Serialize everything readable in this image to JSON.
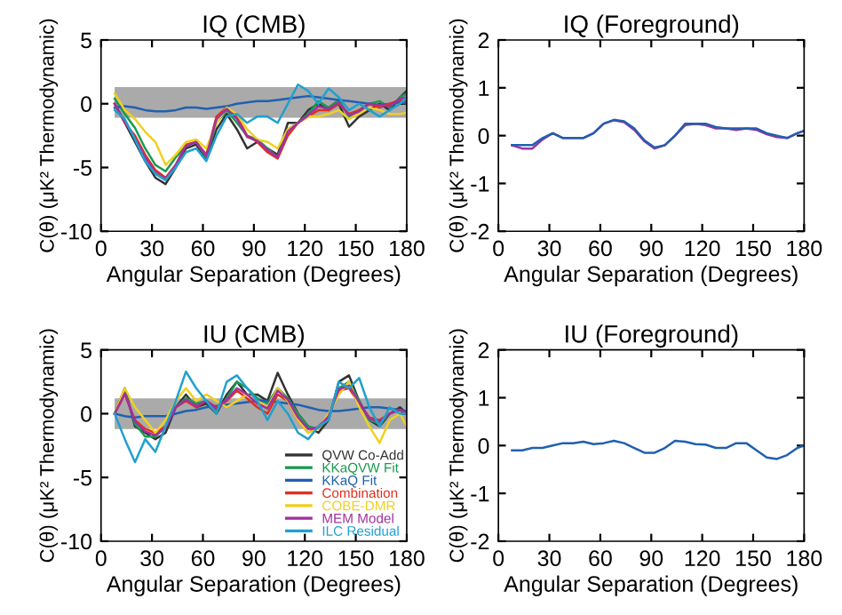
{
  "chart_data": [
    {
      "type": "line",
      "title": "IQ (CMB)",
      "xlabel": "Angular Separation (Degrees)",
      "ylabel": "C(θ) (μK² Thermodynamic)",
      "x": [
        8,
        14,
        20,
        26,
        32,
        38,
        44,
        50,
        56,
        62,
        68,
        74,
        80,
        86,
        92,
        98,
        104,
        110,
        116,
        122,
        128,
        134,
        140,
        146,
        152,
        158,
        164,
        170,
        176,
        180
      ],
      "xlim": [
        0,
        180
      ],
      "xticks": [
        0,
        30,
        60,
        90,
        120,
        150,
        180
      ],
      "ylim": [
        -10,
        5
      ],
      "yticks": [
        -10,
        -5,
        0,
        5
      ],
      "grid": false,
      "legend": false,
      "bands": [
        {
          "axis": "y",
          "from": -1.1,
          "to": 1.3,
          "color": "#aaaaaa"
        }
      ],
      "series": [
        {
          "color": "#333333",
          "values": [
            0,
            -1.5,
            -3,
            -4.5,
            -5.8,
            -6.3,
            -5,
            -3.5,
            -3.2,
            -4.3,
            -2,
            -0.8,
            -2,
            -3.5,
            -3,
            -3.5,
            -4,
            -1.5,
            -1.5,
            -0.5,
            0,
            -0.5,
            0,
            -1.8,
            -1,
            -0.5,
            0,
            -0.5,
            0.5,
            1
          ]
        },
        {
          "color": "#1a9a50",
          "values": [
            0.4,
            -0.8,
            -1.9,
            -3.5,
            -4.8,
            -5.3,
            -4.2,
            -3.3,
            -3,
            -4.2,
            -1.5,
            -0.5,
            -1.5,
            -2.5,
            -2.8,
            -3.5,
            -4.2,
            -2,
            -1.5,
            -0.8,
            0.2,
            -0.3,
            0.3,
            -1,
            -0.5,
            0,
            0.2,
            -0.3,
            0.5,
            0.8
          ]
        },
        {
          "color": "#2060b0",
          "values": [
            -0.3,
            -0.2,
            -0.3,
            -0.5,
            -0.6,
            -0.6,
            -0.5,
            -0.3,
            -0.3,
            -0.4,
            -0.3,
            -0.2,
            0,
            0.1,
            0.2,
            0.2,
            0.3,
            0.4,
            0.5,
            0.6,
            0.5,
            0.4,
            0.3,
            0.2,
            0.1,
            0,
            -0.1,
            0,
            0.1,
            0
          ]
        },
        {
          "color": "#e03020",
          "values": [
            0,
            -1.5,
            -2.5,
            -4,
            -5.2,
            -5.8,
            -4.8,
            -3.2,
            -3,
            -4,
            -1,
            -0.3,
            -1,
            -2.5,
            -3,
            -3.8,
            -4.3,
            -2.5,
            -1.5,
            -1,
            -0.5,
            -0.5,
            0,
            -0.8,
            -0.5,
            0,
            -0.3,
            0,
            0.3,
            0.2
          ]
        },
        {
          "color": "#f0d020",
          "values": [
            0.8,
            -0.5,
            -1.2,
            -2.2,
            -3,
            -4.8,
            -4,
            -3,
            -2.8,
            -3.5,
            -1.5,
            -0.3,
            -0.8,
            -2,
            -2.8,
            -3,
            -3.5,
            -2,
            -1.5,
            -1,
            -1,
            -0.8,
            -0.5,
            -1.2,
            -0.8,
            -0.3,
            -0.5,
            -0.8,
            -0.8,
            -0.7
          ]
        },
        {
          "color": "#a030a0",
          "values": [
            0,
            -1.4,
            -2.7,
            -4.2,
            -5.4,
            -5.9,
            -4.8,
            -3.3,
            -3,
            -4.1,
            -1.2,
            -0.4,
            -1.2,
            -2.6,
            -2.9,
            -3.6,
            -4.2,
            -2.2,
            -1.5,
            -0.9,
            -0.2,
            -0.4,
            0.1,
            -0.9,
            -0.6,
            0,
            -0.1,
            -0.2,
            0.4,
            0.5
          ]
        },
        {
          "color": "#20a0d0",
          "values": [
            -0.5,
            -1.2,
            -2.8,
            -4.5,
            -5.5,
            -6,
            -5,
            -3.8,
            -3.5,
            -4.5,
            -2.5,
            -1,
            -0.8,
            -1.5,
            -1,
            -1,
            -1.5,
            0,
            1.5,
            1,
            0,
            1.2,
            0.5,
            -0.5,
            0,
            -0.5,
            -1,
            -0.5,
            0,
            0.5
          ]
        }
      ]
    },
    {
      "type": "line",
      "title": "IQ (Foreground)",
      "xlabel": "Angular Separation (Degrees)",
      "ylabel": "C(θ) (μK² Thermodynamic)",
      "x": [
        8,
        14,
        20,
        26,
        32,
        38,
        44,
        50,
        56,
        62,
        68,
        74,
        80,
        86,
        92,
        98,
        104,
        110,
        116,
        122,
        128,
        134,
        140,
        146,
        152,
        158,
        164,
        170,
        176,
        180
      ],
      "xlim": [
        0,
        180
      ],
      "xticks": [
        0,
        30,
        60,
        90,
        120,
        150,
        180
      ],
      "ylim": [
        -2,
        2
      ],
      "yticks": [
        -2,
        -1,
        0,
        1,
        2
      ],
      "grid": false,
      "legend": false,
      "series": [
        {
          "color": "#a030a0",
          "values": [
            -0.2,
            -0.27,
            -0.27,
            -0.08,
            0.05,
            -0.05,
            -0.05,
            -0.05,
            0.05,
            0.25,
            0.32,
            0.28,
            0.12,
            -0.12,
            -0.27,
            -0.2,
            0,
            0.22,
            0.25,
            0.22,
            0.15,
            0.15,
            0.12,
            0.15,
            0.12,
            0.03,
            -0.03,
            -0.05,
            0.05,
            0.1
          ]
        },
        {
          "color": "#2060b0",
          "values": [
            -0.2,
            -0.2,
            -0.2,
            -0.05,
            0.05,
            -0.05,
            -0.05,
            -0.05,
            0.05,
            0.25,
            0.33,
            0.3,
            0.15,
            -0.1,
            -0.25,
            -0.2,
            0,
            0.25,
            0.25,
            0.25,
            0.18,
            0.15,
            0.15,
            0.15,
            0.15,
            0.05,
            0,
            -0.05,
            0.05,
            0.1
          ]
        }
      ]
    },
    {
      "type": "line",
      "title": "IU (CMB)",
      "xlabel": "Angular Separation (Degrees)",
      "ylabel": "C(θ) (μK² Thermodynamic)",
      "x": [
        8,
        14,
        20,
        26,
        32,
        38,
        44,
        50,
        56,
        62,
        68,
        74,
        80,
        86,
        92,
        98,
        104,
        110,
        116,
        122,
        128,
        134,
        140,
        146,
        152,
        158,
        164,
        170,
        176,
        180
      ],
      "xlim": [
        0,
        180
      ],
      "xticks": [
        0,
        30,
        60,
        90,
        120,
        150,
        180
      ],
      "ylim": [
        -10,
        5
      ],
      "yticks": [
        -10,
        -5,
        0,
        5
      ],
      "grid": false,
      "legend": "bottom right",
      "bands": [
        {
          "axis": "y",
          "from": -1.2,
          "to": 1.2,
          "color": "#aaaaaa"
        }
      ],
      "series": [
        {
          "name": "QVW Co-Add",
          "color": "#333333",
          "values": [
            0,
            2,
            -1,
            -1.5,
            -2,
            -1.5,
            0.5,
            1.5,
            0.5,
            0.8,
            0,
            1.5,
            2.5,
            1.5,
            1.5,
            1,
            3.2,
            1.5,
            0,
            -1,
            -1.5,
            -0.5,
            2.5,
            3,
            1,
            -0.5,
            -1,
            0,
            0.5,
            0
          ]
        },
        {
          "name": "KKaQVW Fit",
          "color": "#1a9a50",
          "values": [
            0,
            1.8,
            -0.8,
            -1.8,
            -1.8,
            -1,
            0.5,
            1.2,
            0.8,
            1,
            0.2,
            1.2,
            2.5,
            2,
            1.2,
            0.8,
            2,
            1.2,
            0,
            -1,
            -1.2,
            -0.2,
            2,
            2.5,
            1,
            -0.5,
            -0.8,
            0,
            0.3,
            0
          ]
        },
        {
          "name": "KKaQ Fit",
          "color": "#2060b0",
          "values": [
            0,
            -0.2,
            -0.3,
            -0.2,
            -0.2,
            -0.2,
            0,
            0.2,
            0.3,
            0.5,
            0.6,
            0.7,
            0.8,
            0.9,
            1,
            1,
            0.9,
            0.8,
            0.7,
            0.5,
            0.3,
            0.2,
            0.2,
            0.3,
            0.4,
            0.5,
            0.5,
            0.4,
            0.3,
            0.2
          ]
        },
        {
          "name": "Combination",
          "color": "#e03020",
          "values": [
            0,
            1.5,
            -0.5,
            -1.2,
            -1.5,
            -1,
            0.5,
            1,
            0.5,
            1,
            0.5,
            1,
            1.8,
            1.2,
            0.5,
            0,
            1.5,
            1,
            -0.5,
            -1.5,
            -1,
            -0.2,
            1.8,
            2,
            0.8,
            -0.3,
            -0.5,
            0,
            0.3,
            0
          ]
        },
        {
          "name": "COBE-DMR",
          "color": "#f0d020",
          "values": [
            0,
            2,
            0.5,
            -0.5,
            -1.5,
            -0.5,
            1,
            2,
            1,
            1.5,
            1,
            0.5,
            1,
            1.5,
            1,
            0.5,
            2,
            1,
            -0.5,
            -1.5,
            -1.2,
            0,
            1.5,
            2.5,
            0.5,
            -1,
            -2.3,
            -0.5,
            0,
            -1
          ]
        },
        {
          "name": "MEM Model",
          "color": "#a030a0",
          "values": [
            0,
            1.6,
            -0.6,
            -1.4,
            -1.7,
            -1.1,
            0.5,
            1.1,
            0.6,
            1,
            0.4,
            1.1,
            2,
            1.5,
            0.8,
            0.4,
            1.8,
            1.1,
            -0.3,
            -1.2,
            -1.1,
            -0.2,
            1.9,
            2.2,
            0.9,
            -0.4,
            -0.6,
            0,
            0.3,
            0
          ]
        },
        {
          "name": "ILC Residual",
          "color": "#20a0d0",
          "values": [
            0,
            -2,
            -3.8,
            -2,
            -3,
            -1,
            1,
            3.3,
            2,
            1,
            0,
            2.5,
            3,
            2,
            1,
            -0.5,
            1,
            0,
            -1.5,
            -2,
            -1,
            -0.5,
            2.5,
            2,
            2.8,
            0.5,
            -1,
            0.5,
            0,
            0
          ]
        }
      ]
    },
    {
      "type": "line",
      "title": "IU (Foreground)",
      "xlabel": "Angular Separation (Degrees)",
      "ylabel": "C(θ) (μK² Thermodynamic)",
      "x": [
        8,
        14,
        20,
        26,
        32,
        38,
        44,
        50,
        56,
        62,
        68,
        74,
        80,
        86,
        92,
        98,
        104,
        110,
        116,
        122,
        128,
        134,
        140,
        146,
        152,
        158,
        164,
        170,
        176,
        180
      ],
      "xlim": [
        0,
        180
      ],
      "xticks": [
        0,
        30,
        60,
        90,
        120,
        150,
        180
      ],
      "ylim": [
        -2,
        2
      ],
      "yticks": [
        -2,
        -1,
        0,
        1,
        2
      ],
      "grid": false,
      "legend": false,
      "series": [
        {
          "color": "#2060b0",
          "values": [
            -0.1,
            -0.1,
            -0.05,
            -0.05,
            0,
            0.05,
            0.05,
            0.08,
            0.03,
            0.05,
            0.1,
            0.05,
            -0.05,
            -0.15,
            -0.15,
            -0.05,
            0.1,
            0.08,
            0.03,
            0.02,
            -0.05,
            -0.05,
            0.05,
            0.05,
            -0.1,
            -0.25,
            -0.28,
            -0.2,
            -0.05,
            0
          ]
        }
      ]
    }
  ]
}
